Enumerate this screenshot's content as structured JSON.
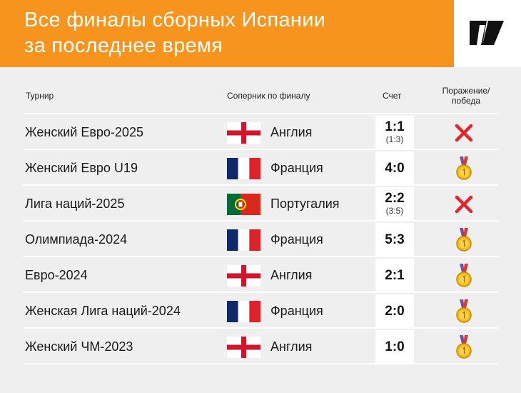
{
  "title_line1": "Все финалы сборных Испании",
  "title_line2": "за последнее время",
  "columns": {
    "tournament": "Турнир",
    "opponent": "Соперник по финалу",
    "score": "Счет",
    "result_line1": "Поражение/",
    "result_line2": "победа"
  },
  "rows": [
    {
      "tournament": "Женский Евро-2025",
      "opponent": "Англия",
      "flag": "england-flag-icon",
      "score": "1:1",
      "penalty": "(1:3)",
      "result": "loss"
    },
    {
      "tournament": "Женский Евро U19",
      "opponent": "Франция",
      "flag": "france-flag-icon",
      "score": "4:0",
      "penalty": "",
      "result": "win"
    },
    {
      "tournament": "Лига наций-2025",
      "opponent": "Португалия",
      "flag": "portugal-flag-icon",
      "score": "2:2",
      "penalty": "(3:5)",
      "result": "loss"
    },
    {
      "tournament": "Олимпиада-2024",
      "opponent": "Франция",
      "flag": "france-flag-icon",
      "score": "5:3",
      "penalty": "",
      "result": "win"
    },
    {
      "tournament": "Евро-2024",
      "opponent": "Англия",
      "flag": "england-flag-icon",
      "score": "2:1",
      "penalty": "",
      "result": "win"
    },
    {
      "tournament": "Женская Лига наций-2024",
      "opponent": "Франция",
      "flag": "france-flag-icon",
      "score": "2:0",
      "penalty": "",
      "result": "win"
    },
    {
      "tournament": "Женский ЧМ-2023",
      "opponent": "Англия",
      "flag": "england-flag-icon",
      "score": "1:0",
      "penalty": "",
      "result": "win"
    }
  ],
  "colors": {
    "header_bg": "#f7941e",
    "page_bg": "#efefef",
    "loss_cross": "#e3262d",
    "medal_gold": "#f5b91a"
  },
  "icons": {
    "logo": "logo-icon",
    "loss": "cross-icon",
    "win": "gold-medal-icon"
  }
}
